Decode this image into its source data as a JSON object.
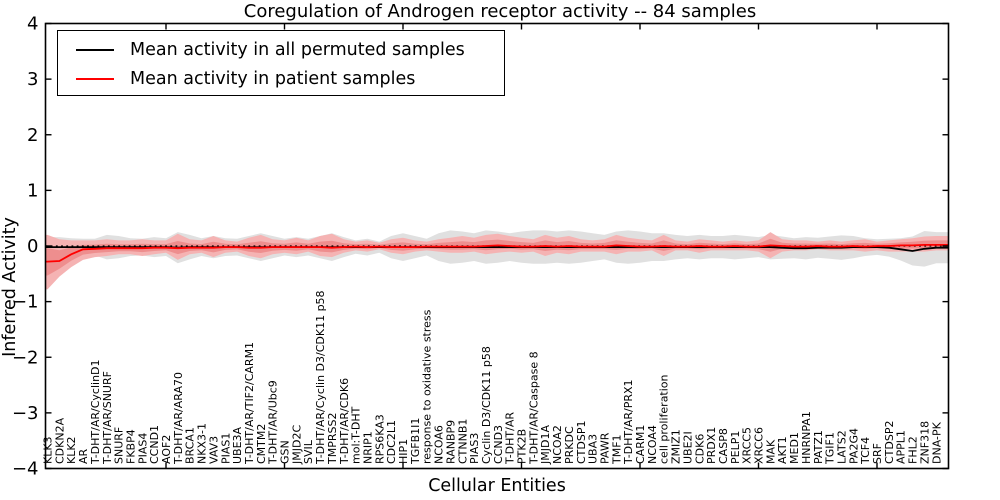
{
  "chart_data": {
    "type": "line",
    "title": "Coregulation of Androgen receptor activity -- 84 samples",
    "xlabel": "Cellular Entities",
    "ylabel": "Inferred Activity",
    "ylim": [
      -4,
      4
    ],
    "yticks": [
      {
        "v": 4,
        "label": "4"
      },
      {
        "v": 3,
        "label": "3"
      },
      {
        "v": 2,
        "label": "2"
      },
      {
        "v": 1,
        "label": "1"
      },
      {
        "v": 0,
        "label": "0"
      },
      {
        "v": -1,
        "label": "−1"
      },
      {
        "v": -2,
        "label": "−2"
      },
      {
        "v": -3,
        "label": "−3"
      },
      {
        "v": -4,
        "label": "−4"
      }
    ],
    "xtick_marks_every": 10,
    "grid": false,
    "legend_position": "upper-left",
    "legend": [
      {
        "label": "Mean activity in all permuted samples",
        "color": "#000000"
      },
      {
        "label": "Mean activity in patient samples",
        "color": "#ff0000"
      }
    ],
    "colors": {
      "permuted_line": "#000000",
      "patient_line": "#ff0000",
      "permuted_band": "#e0e0e0",
      "patient_band_outer": "#f5b3b3",
      "patient_band_inner": "#ee8e8e",
      "zero_line": "#000000"
    },
    "categories": [
      "KLK3",
      "CDKN2A",
      "KLK2",
      "AR",
      "T-DHT/AR/CyclinD1",
      "T-DHT/AR/SNURF",
      "SNURF",
      "FKBP4",
      "PIAS4",
      "CCND1",
      "AOF2",
      "T-DHT/AR/ARA70",
      "BRCA1",
      "NKX3-1",
      "VAV3",
      "PIAS1",
      "UBE3A",
      "T-DHT/AR/TIF2/CARM1",
      "CMTM2",
      "T-DHT/AR/Ubc9",
      "GSN",
      "JMJD2C",
      "SVIL",
      "T-DHT/AR/Cyclin D3/CDK11 p58",
      "TMPRSS2",
      "T-DHT/AR/CDK6",
      "mol:T-DHT",
      "NRIP1",
      "RPS6KA3",
      "CDC2L1",
      "HIP1",
      "TGFB1I1",
      "response to oxidative stress",
      "NCOA6",
      "RANBP9",
      "CTNNB1",
      "PIAS3",
      "Cyclin D3/CDK11 p58",
      "CCND3",
      "T-DHT/AR",
      "PTK2B",
      "T-DHT/AR/Caspase 8",
      "JMJD1A",
      "NCOA2",
      "PRKDC",
      "CTDSP1",
      "UBA3",
      "PAWR",
      "TMF1",
      "T-DHT/AR/PRX1",
      "CARM1",
      "NCOA4",
      "cell proliferation",
      "ZMIZ1",
      "UBE2I",
      "CDK6",
      "PRDX1",
      "CASP8",
      "PELP1",
      "XRCC5",
      "XRCC6",
      "MAK",
      "AKT1",
      "MED1",
      "HNRNPA1",
      "PATZ1",
      "TGIF1",
      "LATS2",
      "PA2G4",
      "TCF4",
      "SRF",
      "CTDSP2",
      "APPL1",
      "FHL2",
      "ZNF318",
      "DNA-PK"
    ],
    "series": [
      {
        "name": "Mean activity in all permuted samples",
        "color": "#000000",
        "values": [
          -0.02,
          -0.02,
          -0.02,
          -0.02,
          -0.02,
          -0.02,
          -0.02,
          -0.02,
          -0.02,
          -0.02,
          -0.02,
          -0.03,
          -0.02,
          -0.02,
          -0.02,
          -0.02,
          -0.02,
          -0.02,
          -0.02,
          -0.02,
          -0.02,
          -0.02,
          -0.02,
          -0.02,
          -0.02,
          -0.02,
          -0.02,
          -0.02,
          -0.02,
          -0.02,
          -0.02,
          -0.02,
          -0.02,
          -0.02,
          -0.02,
          -0.02,
          -0.02,
          -0.02,
          -0.02,
          -0.02,
          -0.02,
          -0.02,
          -0.02,
          -0.02,
          -0.02,
          -0.02,
          -0.02,
          -0.02,
          -0.02,
          -0.02,
          -0.02,
          -0.02,
          -0.02,
          -0.02,
          -0.02,
          -0.02,
          -0.02,
          -0.02,
          -0.02,
          -0.02,
          -0.02,
          -0.02,
          -0.03,
          -0.04,
          -0.04,
          -0.03,
          -0.03,
          -0.03,
          -0.02,
          -0.02,
          -0.02,
          -0.03,
          -0.06,
          -0.09,
          -0.05,
          -0.03
        ]
      },
      {
        "name": "Mean activity in patient samples",
        "color": "#ff0000",
        "values": [
          -0.28,
          -0.27,
          -0.15,
          -0.06,
          -0.05,
          -0.04,
          -0.04,
          -0.04,
          -0.04,
          -0.03,
          -0.03,
          -0.04,
          -0.03,
          -0.03,
          -0.03,
          -0.02,
          -0.02,
          -0.03,
          -0.03,
          -0.02,
          -0.02,
          -0.02,
          -0.02,
          -0.02,
          -0.03,
          -0.02,
          -0.01,
          -0.02,
          -0.01,
          -0.02,
          -0.02,
          -0.02,
          -0.01,
          -0.01,
          -0.01,
          -0.01,
          -0.01,
          0,
          0.01,
          0,
          -0.01,
          -0.01,
          0,
          -0.01,
          0,
          -0.01,
          -0.01,
          -0.01,
          0.01,
          0,
          -0.01,
          -0.01,
          0,
          -0.01,
          -0.01,
          0,
          -0.01,
          -0.01,
          0,
          -0.01,
          -0.01,
          0.01,
          0,
          -0.01,
          -0.01,
          0,
          -0.01,
          -0.01,
          0,
          -0.01,
          0,
          0,
          0.01,
          0.01,
          0.02,
          0.02
        ]
      }
    ],
    "permuted_band_half_width": [
      0.18,
      0.18,
      0.16,
      0.15,
      0.15,
      0.22,
      0.2,
      0.16,
      0.15,
      0.18,
      0.16,
      0.28,
      0.22,
      0.16,
      0.2,
      0.16,
      0.15,
      0.2,
      0.25,
      0.2,
      0.15,
      0.18,
      0.15,
      0.2,
      0.25,
      0.18,
      0.12,
      0.15,
      0.1,
      0.2,
      0.25,
      0.2,
      0.15,
      0.25,
      0.3,
      0.28,
      0.25,
      0.3,
      0.28,
      0.25,
      0.28,
      0.3,
      0.3,
      0.28,
      0.3,
      0.28,
      0.25,
      0.22,
      0.28,
      0.3,
      0.28,
      0.25,
      0.25,
      0.22,
      0.2,
      0.22,
      0.2,
      0.2,
      0.22,
      0.2,
      0.18,
      0.22,
      0.2,
      0.18,
      0.2,
      0.18,
      0.2,
      0.22,
      0.2,
      0.16,
      0.14,
      0.16,
      0.2,
      0.26,
      0.32,
      0.28
    ],
    "patient_band_upper": [
      0.2,
      0.12,
      0.1,
      0.1,
      0.1,
      0.12,
      0.1,
      0.1,
      0.12,
      0.1,
      0.1,
      0.22,
      0.12,
      0.1,
      0.18,
      0.1,
      0.08,
      0.15,
      0.2,
      0.12,
      0.1,
      0.15,
      0.1,
      0.18,
      0.22,
      0.12,
      0.08,
      0.1,
      0.06,
      0.12,
      0.15,
      0.1,
      0.08,
      0.12,
      0.15,
      0.18,
      0.15,
      0.2,
      0.22,
      0.18,
      0.15,
      0.12,
      0.2,
      0.15,
      0.18,
      0.12,
      0.1,
      0.12,
      0.2,
      0.15,
      0.12,
      0.1,
      0.2,
      0.1,
      0.08,
      0.12,
      0.1,
      0.08,
      0.1,
      0.08,
      0.1,
      0.25,
      0.12,
      0.1,
      0.1,
      0.08,
      0.1,
      0.08,
      0.1,
      0.12,
      0.08,
      0.1,
      0.12,
      0.14,
      0.17,
      0.18
    ],
    "patient_band_lower": [
      -0.78,
      -0.55,
      -0.38,
      -0.25,
      -0.2,
      -0.18,
      -0.15,
      -0.15,
      -0.18,
      -0.15,
      -0.12,
      -0.25,
      -0.15,
      -0.12,
      -0.2,
      -0.12,
      -0.1,
      -0.18,
      -0.22,
      -0.15,
      -0.12,
      -0.15,
      -0.1,
      -0.18,
      -0.2,
      -0.12,
      -0.08,
      -0.1,
      -0.06,
      -0.12,
      -0.15,
      -0.1,
      -0.08,
      -0.1,
      -0.12,
      -0.12,
      -0.1,
      -0.15,
      -0.12,
      -0.1,
      -0.12,
      -0.1,
      -0.18,
      -0.12,
      -0.15,
      -0.1,
      -0.1,
      -0.1,
      -0.15,
      -0.1,
      -0.1,
      -0.08,
      -0.18,
      -0.08,
      -0.08,
      -0.12,
      -0.08,
      -0.08,
      -0.08,
      -0.08,
      -0.1,
      -0.22,
      -0.1,
      -0.08,
      -0.08,
      -0.06,
      -0.08,
      -0.08,
      -0.08,
      -0.1,
      -0.08,
      -0.1,
      -0.1,
      -0.1,
      -0.1,
      -0.08
    ],
    "patient_band_inner_scale": 0.5,
    "zero_line_style": "dotted"
  }
}
